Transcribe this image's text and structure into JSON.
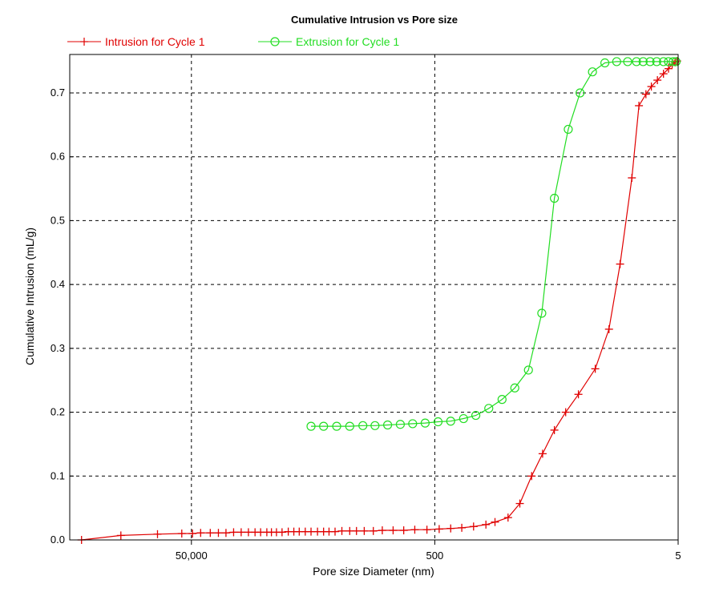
{
  "chart_data": {
    "type": "line",
    "title": "Cumulative Intrusion vs Pore size",
    "xlabel": "Pore size Diameter (nm)",
    "ylabel": "Cumulative Intrusion (mL/g)",
    "x_scale": "log",
    "x_reversed": true,
    "xlim": [
      500000,
      5
    ],
    "ylim": [
      0,
      0.75
    ],
    "x_ticks": [
      50000,
      500,
      5
    ],
    "x_tick_labels": [
      "50,000",
      "500",
      "5"
    ],
    "y_ticks": [
      0.0,
      0.1,
      0.2,
      0.3,
      0.4,
      0.5,
      0.6,
      0.7
    ],
    "y_tick_labels": [
      "0.0",
      "0.1",
      "0.2",
      "0.3",
      "0.4",
      "0.5",
      "0.6",
      "0.7"
    ],
    "grid": true,
    "legend_position": "top-left",
    "series": [
      {
        "name": "Intrusion for Cycle 1",
        "color": "#e00000",
        "marker": "plus",
        "x": [
          400000,
          190000,
          95000,
          60000,
          49000,
          42000,
          35000,
          30000,
          26000,
          22500,
          19500,
          17000,
          15000,
          13500,
          12000,
          11000,
          10000,
          9000,
          8000,
          7200,
          6500,
          5800,
          5200,
          4600,
          4100,
          3700,
          3300,
          2900,
          2500,
          2200,
          1900,
          1600,
          1350,
          1100,
          900,
          730,
          580,
          460,
          370,
          300,
          240,
          190,
          160,
          125,
          100,
          80,
          65,
          52,
          42,
          33,
          24,
          18.5,
          15,
          12,
          10.5,
          9.2,
          8.3,
          7.4,
          6.6,
          6.0,
          5.6,
          5.3,
          5.1
        ],
        "y": [
          0.0,
          0.007,
          0.009,
          0.01,
          0.01,
          0.011,
          0.011,
          0.011,
          0.011,
          0.012,
          0.012,
          0.012,
          0.012,
          0.012,
          0.012,
          0.012,
          0.012,
          0.012,
          0.013,
          0.013,
          0.013,
          0.013,
          0.013,
          0.013,
          0.013,
          0.013,
          0.013,
          0.014,
          0.014,
          0.014,
          0.014,
          0.014,
          0.015,
          0.015,
          0.015,
          0.016,
          0.016,
          0.017,
          0.018,
          0.019,
          0.021,
          0.024,
          0.028,
          0.035,
          0.057,
          0.1,
          0.135,
          0.172,
          0.2,
          0.228,
          0.268,
          0.33,
          0.432,
          0.567,
          0.68,
          0.698,
          0.71,
          0.72,
          0.73,
          0.738,
          0.745,
          0.748,
          0.75
        ]
      },
      {
        "name": "Extrusion for Cycle 1",
        "color": "#22dd22",
        "marker": "circle",
        "x": [
          5.2,
          5.5,
          6.0,
          6.6,
          7.5,
          8.5,
          9.7,
          11,
          13,
          16,
          20,
          25.3,
          32,
          40,
          52,
          66,
          85,
          110,
          140,
          180,
          230,
          290,
          370,
          470,
          600,
          760,
          960,
          1220,
          1550,
          1950,
          2500,
          3200,
          4100,
          5200
        ],
        "y": [
          0.749,
          0.749,
          0.749,
          0.749,
          0.749,
          0.749,
          0.749,
          0.749,
          0.749,
          0.749,
          0.747,
          0.733,
          0.7,
          0.643,
          0.535,
          0.355,
          0.266,
          0.238,
          0.22,
          0.206,
          0.195,
          0.19,
          0.186,
          0.185,
          0.183,
          0.182,
          0.181,
          0.18,
          0.179,
          0.179,
          0.178,
          0.178,
          0.178,
          0.178
        ]
      }
    ]
  }
}
